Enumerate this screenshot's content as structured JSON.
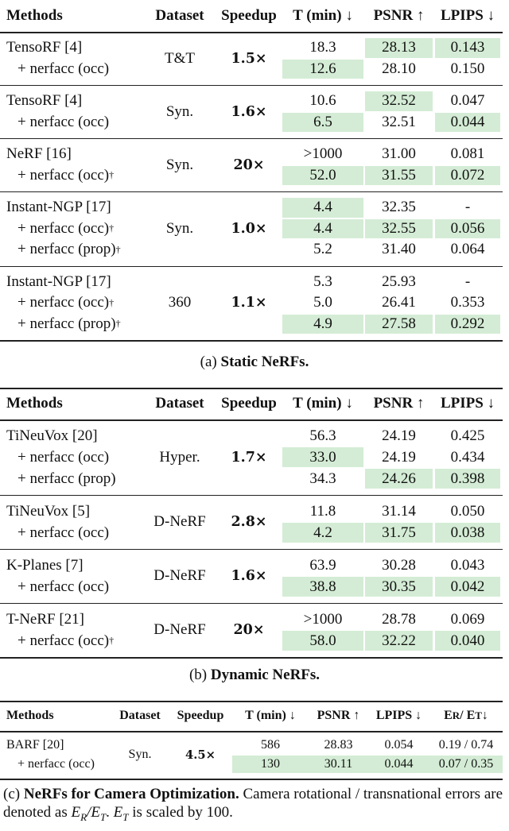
{
  "highlight_color": "#d4ecd5",
  "tables": [
    {
      "header": [
        "Methods",
        "Dataset",
        "Speedup",
        "T (min) ↓",
        "PSNR ↑",
        "LPIPS ↓"
      ],
      "groups": [
        {
          "dataset": "T&T",
          "speedup": "1.5×",
          "rows": [
            {
              "method": "TensoRF [4]",
              "cells": [
                "18.3",
                "28.13",
                "0.143"
              ],
              "hl": [
                1,
                2
              ]
            },
            {
              "method": "+ nerfacc (occ)",
              "cells": [
                "12.6",
                "28.10",
                "0.150"
              ],
              "hl": [
                0
              ]
            }
          ]
        },
        {
          "dataset": "Syn.",
          "speedup": "1.6×",
          "rows": [
            {
              "method": "TensoRF [4]",
              "cells": [
                "10.6",
                "32.52",
                "0.047"
              ],
              "hl": [
                1
              ]
            },
            {
              "method": "+ nerfacc (occ)",
              "cells": [
                "6.5",
                "32.51",
                "0.044"
              ],
              "hl": [
                0,
                2
              ]
            }
          ]
        },
        {
          "dataset": "Syn.",
          "speedup": "20×",
          "rows": [
            {
              "method": "NeRF [16]",
              "cells": [
                ">1000",
                "31.00",
                "0.081"
              ],
              "hl": []
            },
            {
              "method": "+ nerfacc (occ)",
              "mark": "†",
              "cells": [
                "52.0",
                "31.55",
                "0.072"
              ],
              "hl": [
                0,
                1,
                2
              ]
            }
          ]
        },
        {
          "dataset": "Syn.",
          "speedup": "1.0×",
          "rows": [
            {
              "method": "Instant-NGP [17]",
              "cells": [
                "4.4",
                "32.35",
                "-"
              ],
              "hl": [
                0
              ]
            },
            {
              "method": "+ nerfacc (occ)",
              "mark": "†",
              "cells": [
                "4.4",
                "32.55",
                "0.056"
              ],
              "hl": [
                0,
                1,
                2
              ]
            },
            {
              "method": "+ nerfacc (prop)",
              "mark": "†",
              "cells": [
                "5.2",
                "31.40",
                "0.064"
              ],
              "hl": []
            }
          ]
        },
        {
          "dataset": "360",
          "speedup": "1.1×",
          "rows": [
            {
              "method": "Instant-NGP [17]",
              "cells": [
                "5.3",
                "25.93",
                "-"
              ],
              "hl": []
            },
            {
              "method": "+ nerfacc (occ)",
              "mark": "†",
              "cells": [
                "5.0",
                "26.41",
                "0.353"
              ],
              "hl": []
            },
            {
              "method": "+ nerfacc (prop)",
              "mark": "†",
              "cells": [
                "4.9",
                "27.58",
                "0.292"
              ],
              "hl": [
                0,
                1,
                2
              ]
            }
          ]
        }
      ],
      "caption": [
        {
          "t": "(a) "
        },
        {
          "t": "Static NeRFs.",
          "s": "b"
        }
      ]
    },
    {
      "header": [
        "Methods",
        "Dataset",
        "Speedup",
        "T (min) ↓",
        "PSNR ↑",
        "LPIPS ↓"
      ],
      "groups": [
        {
          "dataset": "Hyper.",
          "speedup": "1.7×",
          "rows": [
            {
              "method": "TiNeuVox [20]",
              "cells": [
                "56.3",
                "24.19",
                "0.425"
              ],
              "hl": []
            },
            {
              "method": "+ nerfacc (occ)",
              "cells": [
                "33.0",
                "24.19",
                "0.434"
              ],
              "hl": [
                0
              ]
            },
            {
              "method": "+ nerfacc (prop)",
              "cells": [
                "34.3",
                "24.26",
                "0.398"
              ],
              "hl": [
                1,
                2
              ]
            }
          ]
        },
        {
          "dataset": "D-NeRF",
          "speedup": "2.8×",
          "rows": [
            {
              "method": "TiNeuVox [5]",
              "cells": [
                "11.8",
                "31.14",
                "0.050"
              ],
              "hl": []
            },
            {
              "method": "+ nerfacc (occ)",
              "cells": [
                "4.2",
                "31.75",
                "0.038"
              ],
              "hl": [
                0,
                1,
                2
              ]
            }
          ]
        },
        {
          "dataset": "D-NeRF",
          "speedup": "1.6×",
          "rows": [
            {
              "method": "K-Planes [7]",
              "cells": [
                "63.9",
                "30.28",
                "0.043"
              ],
              "hl": []
            },
            {
              "method": "+ nerfacc (occ)",
              "cells": [
                "38.8",
                "30.35",
                "0.042"
              ],
              "hl": [
                0,
                1,
                2
              ]
            }
          ]
        },
        {
          "dataset": "D-NeRF",
          "speedup": "20×",
          "rows": [
            {
              "method": "T-NeRF [21]",
              "cells": [
                ">1000",
                "28.78",
                "0.069"
              ],
              "hl": []
            },
            {
              "method": "+ nerfacc (occ)",
              "mark": "†",
              "cells": [
                "58.0",
                "32.22",
                "0.040"
              ],
              "hl": [
                0,
                1,
                2
              ]
            }
          ]
        }
      ],
      "caption": [
        {
          "t": "(b) "
        },
        {
          "t": "Dynamic NeRFs.",
          "s": "b"
        }
      ]
    },
    {
      "header": [
        "Methods",
        "Dataset",
        "Speedup",
        "T (min) ↓",
        "PSNR ↑",
        "LPIPS ↓",
        [
          "E",
          "R",
          " / E",
          "T",
          " ↓"
        ]
      ],
      "groups": [
        {
          "dataset": "Syn.",
          "speedup": "4.5×",
          "rows": [
            {
              "method": "BARF [20]",
              "cells": [
                "586",
                "28.83",
                "0.054",
                "0.19 / 0.74"
              ],
              "hl": []
            },
            {
              "method": "+ nerfacc (occ)",
              "cells": [
                "130",
                "30.11",
                "0.044",
                "0.07 / 0.35"
              ],
              "hl": [
                0,
                1,
                2,
                3
              ]
            }
          ]
        }
      ],
      "caption": [
        {
          "t": "(c) "
        },
        {
          "t": "NeRFs for Camera Optimization.",
          "s": "b"
        },
        {
          "t": " Camera rotational / transnational errors are denoted as "
        },
        {
          "t": "E",
          "s": "i"
        },
        {
          "t": "R",
          "s": "sub"
        },
        {
          "t": "/",
          "s": "i"
        },
        {
          "t": "E",
          "s": "i"
        },
        {
          "t": "T",
          "s": "sub"
        },
        {
          "t": ". "
        },
        {
          "t": "E",
          "s": "i"
        },
        {
          "t": "T",
          "s": "sub"
        },
        {
          "t": " is scaled by 100."
        }
      ]
    }
  ]
}
